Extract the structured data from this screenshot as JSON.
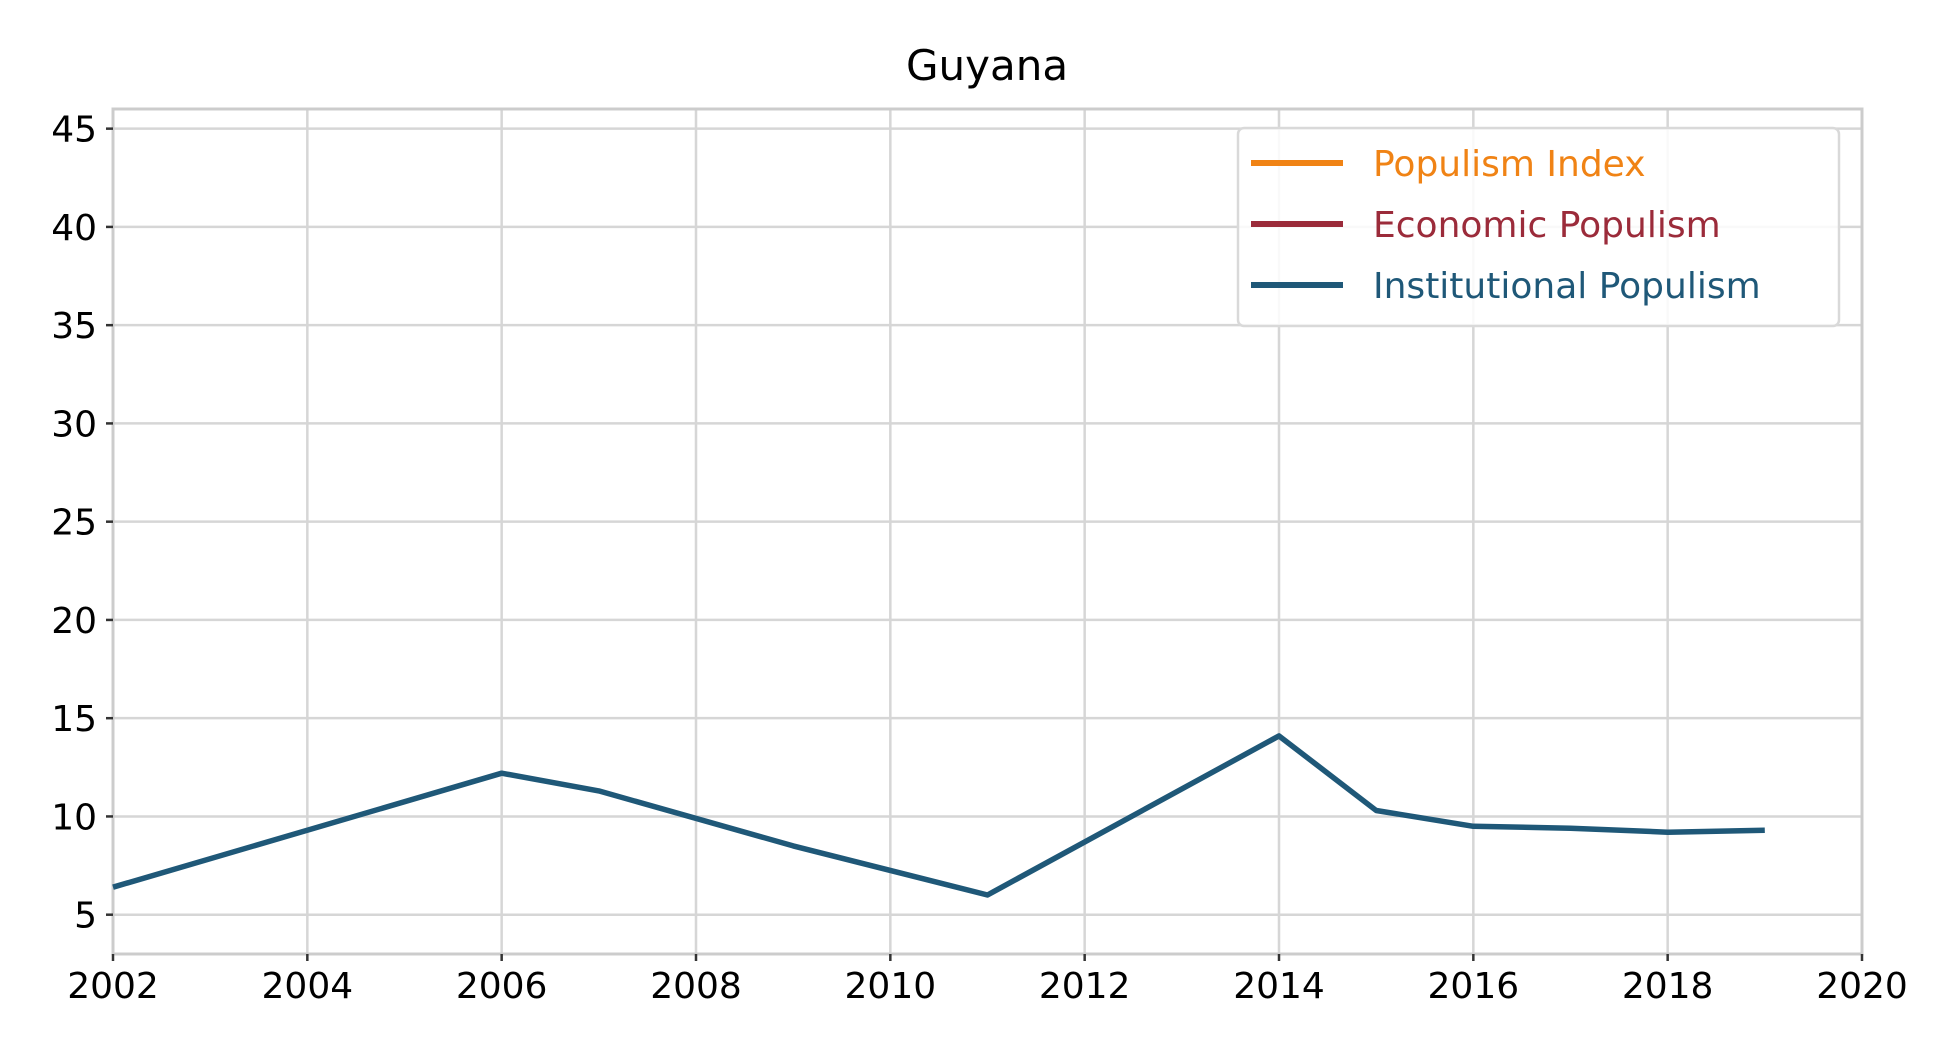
{
  "chart_data": {
    "type": "line",
    "title": "Guyana",
    "xlabel": "",
    "ylabel": "",
    "xlim": [
      2002,
      2020
    ],
    "ylim": [
      3,
      46
    ],
    "xticks": [
      "2002",
      "2004",
      "2006",
      "2008",
      "2010",
      "2012",
      "2014",
      "2016",
      "2018",
      "2020"
    ],
    "yticks": [
      "5",
      "10",
      "15",
      "20",
      "25",
      "30",
      "35",
      "40",
      "45"
    ],
    "grid": true,
    "legend_position": "top-right",
    "series": [
      {
        "name": "Populism Index",
        "color": "#f08315",
        "x": [],
        "y": []
      },
      {
        "name": "Economic Populism",
        "color": "#9b2b3a",
        "x": [],
        "y": []
      },
      {
        "name": "Institutional Populism",
        "color": "#1f5878",
        "x": [
          2002,
          2006,
          2007,
          2009,
          2011,
          2014,
          2015,
          2016,
          2017,
          2018,
          2019
        ],
        "y": [
          6.4,
          12.2,
          11.3,
          8.5,
          6.0,
          14.1,
          10.3,
          9.5,
          9.4,
          9.2,
          9.3
        ]
      }
    ]
  }
}
